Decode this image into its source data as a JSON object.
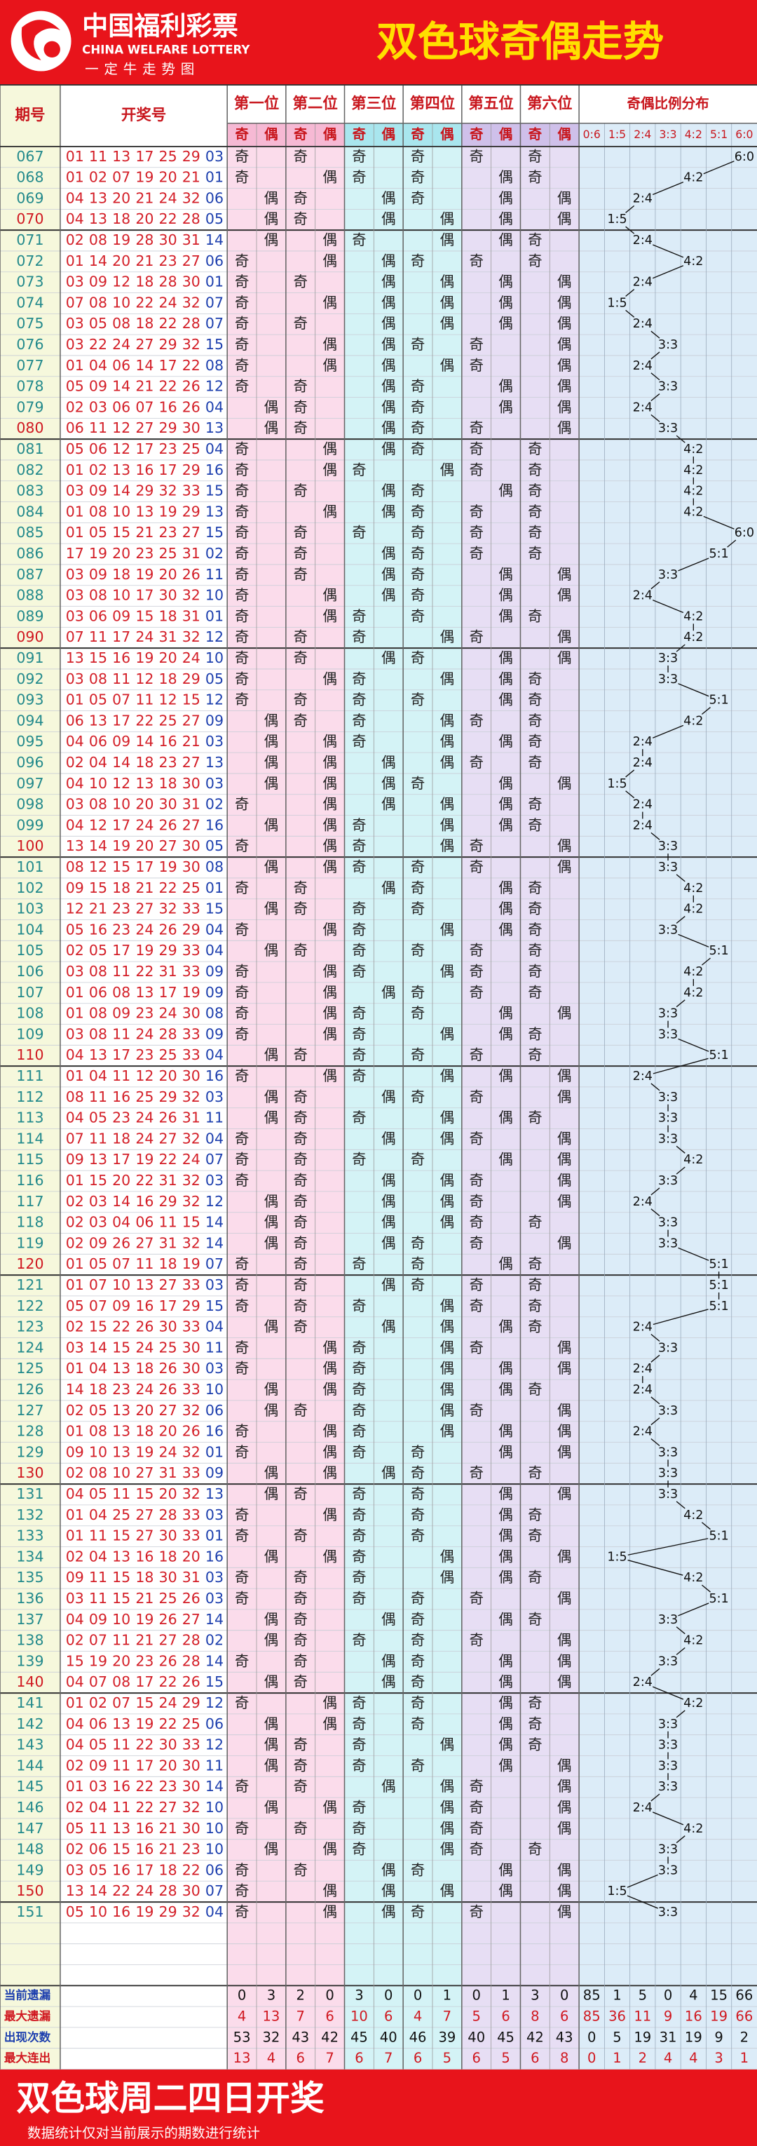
{
  "header": {
    "logo_cn": "中国福利彩票",
    "logo_en": "CHINA WELFARE LOTTERY",
    "logo_slogan": "一定牛走势图",
    "title": "双色球奇偶走势"
  },
  "table": {
    "col_issue": "期号",
    "col_draw": "开奖号",
    "positions": [
      "第一位",
      "第二位",
      "第三位",
      "第四位",
      "第五位",
      "第六位"
    ],
    "parity_labels": [
      "奇",
      "偶"
    ],
    "ratio_title": "奇偶比例分布",
    "ratios": [
      "0:6",
      "1:5",
      "2:4",
      "3:3",
      "4:2",
      "5:1",
      "6:0"
    ],
    "rows": [
      {
        "issue": "067",
        "red": [
          "01",
          "11",
          "13",
          "17",
          "25",
          "29"
        ],
        "blue": "03"
      },
      {
        "issue": "068",
        "red": [
          "01",
          "02",
          "07",
          "19",
          "20",
          "21"
        ],
        "blue": "01"
      },
      {
        "issue": "069",
        "red": [
          "04",
          "13",
          "20",
          "21",
          "24",
          "32"
        ],
        "blue": "06"
      },
      {
        "issue": "070",
        "red": [
          "04",
          "13",
          "18",
          "20",
          "22",
          "28"
        ],
        "blue": "05"
      },
      {
        "issue": "071",
        "red": [
          "02",
          "08",
          "19",
          "28",
          "30",
          "31"
        ],
        "blue": "14"
      },
      {
        "issue": "072",
        "red": [
          "01",
          "14",
          "20",
          "21",
          "23",
          "27"
        ],
        "blue": "06"
      },
      {
        "issue": "073",
        "red": [
          "03",
          "09",
          "12",
          "18",
          "28",
          "30"
        ],
        "blue": "01"
      },
      {
        "issue": "074",
        "red": [
          "07",
          "08",
          "10",
          "22",
          "24",
          "32"
        ],
        "blue": "07"
      },
      {
        "issue": "075",
        "red": [
          "03",
          "05",
          "08",
          "18",
          "22",
          "28"
        ],
        "blue": "07"
      },
      {
        "issue": "076",
        "red": [
          "03",
          "22",
          "24",
          "27",
          "29",
          "32"
        ],
        "blue": "15"
      },
      {
        "issue": "077",
        "red": [
          "01",
          "04",
          "06",
          "14",
          "17",
          "22"
        ],
        "blue": "08"
      },
      {
        "issue": "078",
        "red": [
          "05",
          "09",
          "14",
          "21",
          "22",
          "26"
        ],
        "blue": "12"
      },
      {
        "issue": "079",
        "red": [
          "02",
          "03",
          "06",
          "07",
          "16",
          "26"
        ],
        "blue": "04"
      },
      {
        "issue": "080",
        "red": [
          "06",
          "11",
          "12",
          "27",
          "29",
          "30"
        ],
        "blue": "13"
      },
      {
        "issue": "081",
        "red": [
          "05",
          "06",
          "12",
          "17",
          "23",
          "25"
        ],
        "blue": "04"
      },
      {
        "issue": "082",
        "red": [
          "01",
          "02",
          "13",
          "16",
          "17",
          "29"
        ],
        "blue": "16"
      },
      {
        "issue": "083",
        "red": [
          "03",
          "09",
          "14",
          "29",
          "32",
          "33"
        ],
        "blue": "15"
      },
      {
        "issue": "084",
        "red": [
          "01",
          "08",
          "10",
          "13",
          "19",
          "29"
        ],
        "blue": "13"
      },
      {
        "issue": "085",
        "red": [
          "01",
          "05",
          "15",
          "21",
          "23",
          "27"
        ],
        "blue": "15"
      },
      {
        "issue": "086",
        "red": [
          "17",
          "19",
          "20",
          "23",
          "25",
          "31"
        ],
        "blue": "02"
      },
      {
        "issue": "087",
        "red": [
          "03",
          "09",
          "18",
          "19",
          "20",
          "26"
        ],
        "blue": "11"
      },
      {
        "issue": "088",
        "red": [
          "03",
          "08",
          "10",
          "17",
          "30",
          "32"
        ],
        "blue": "10"
      },
      {
        "issue": "089",
        "red": [
          "03",
          "06",
          "09",
          "15",
          "18",
          "31"
        ],
        "blue": "01"
      },
      {
        "issue": "090",
        "red": [
          "07",
          "11",
          "17",
          "24",
          "31",
          "32"
        ],
        "blue": "12"
      },
      {
        "issue": "091",
        "red": [
          "13",
          "15",
          "16",
          "19",
          "20",
          "24"
        ],
        "blue": "10"
      },
      {
        "issue": "092",
        "red": [
          "03",
          "08",
          "11",
          "12",
          "18",
          "29"
        ],
        "blue": "05"
      },
      {
        "issue": "093",
        "red": [
          "01",
          "05",
          "07",
          "11",
          "12",
          "15"
        ],
        "blue": "12"
      },
      {
        "issue": "094",
        "red": [
          "06",
          "13",
          "17",
          "22",
          "25",
          "27"
        ],
        "blue": "09"
      },
      {
        "issue": "095",
        "red": [
          "04",
          "06",
          "09",
          "14",
          "16",
          "21"
        ],
        "blue": "03"
      },
      {
        "issue": "096",
        "red": [
          "02",
          "04",
          "14",
          "18",
          "23",
          "27"
        ],
        "blue": "13"
      },
      {
        "issue": "097",
        "red": [
          "04",
          "10",
          "12",
          "13",
          "18",
          "30"
        ],
        "blue": "03"
      },
      {
        "issue": "098",
        "red": [
          "03",
          "08",
          "10",
          "20",
          "30",
          "31"
        ],
        "blue": "02"
      },
      {
        "issue": "099",
        "red": [
          "04",
          "12",
          "17",
          "24",
          "26",
          "27"
        ],
        "blue": "16"
      },
      {
        "issue": "100",
        "red": [
          "13",
          "14",
          "19",
          "20",
          "27",
          "30"
        ],
        "blue": "05"
      },
      {
        "issue": "101",
        "red": [
          "08",
          "12",
          "15",
          "17",
          "19",
          "30"
        ],
        "blue": "08"
      },
      {
        "issue": "102",
        "red": [
          "09",
          "15",
          "18",
          "21",
          "22",
          "25"
        ],
        "blue": "01"
      },
      {
        "issue": "103",
        "red": [
          "12",
          "21",
          "23",
          "27",
          "32",
          "33"
        ],
        "blue": "15"
      },
      {
        "issue": "104",
        "red": [
          "05",
          "16",
          "23",
          "24",
          "26",
          "29"
        ],
        "blue": "04"
      },
      {
        "issue": "105",
        "red": [
          "02",
          "05",
          "17",
          "19",
          "29",
          "33"
        ],
        "blue": "04"
      },
      {
        "issue": "106",
        "red": [
          "03",
          "08",
          "11",
          "22",
          "31",
          "33"
        ],
        "blue": "09"
      },
      {
        "issue": "107",
        "red": [
          "01",
          "06",
          "08",
          "13",
          "17",
          "19"
        ],
        "blue": "09"
      },
      {
        "issue": "108",
        "red": [
          "01",
          "08",
          "09",
          "23",
          "24",
          "30"
        ],
        "blue": "08"
      },
      {
        "issue": "109",
        "red": [
          "03",
          "08",
          "11",
          "24",
          "28",
          "33"
        ],
        "blue": "09"
      },
      {
        "issue": "110",
        "red": [
          "04",
          "13",
          "17",
          "23",
          "25",
          "33"
        ],
        "blue": "04"
      },
      {
        "issue": "111",
        "red": [
          "01",
          "04",
          "11",
          "12",
          "20",
          "30"
        ],
        "blue": "16"
      },
      {
        "issue": "112",
        "red": [
          "08",
          "11",
          "16",
          "25",
          "29",
          "32"
        ],
        "blue": "03"
      },
      {
        "issue": "113",
        "red": [
          "04",
          "05",
          "23",
          "24",
          "26",
          "31"
        ],
        "blue": "11"
      },
      {
        "issue": "114",
        "red": [
          "07",
          "11",
          "18",
          "24",
          "27",
          "32"
        ],
        "blue": "04"
      },
      {
        "issue": "115",
        "red": [
          "09",
          "13",
          "17",
          "19",
          "22",
          "24"
        ],
        "blue": "07"
      },
      {
        "issue": "116",
        "red": [
          "01",
          "15",
          "20",
          "22",
          "31",
          "32"
        ],
        "blue": "03"
      },
      {
        "issue": "117",
        "red": [
          "02",
          "03",
          "14",
          "16",
          "29",
          "32"
        ],
        "blue": "12"
      },
      {
        "issue": "118",
        "red": [
          "02",
          "03",
          "04",
          "06",
          "11",
          "15"
        ],
        "blue": "14"
      },
      {
        "issue": "119",
        "red": [
          "02",
          "09",
          "26",
          "27",
          "31",
          "32"
        ],
        "blue": "14"
      },
      {
        "issue": "120",
        "red": [
          "01",
          "05",
          "07",
          "11",
          "18",
          "19"
        ],
        "blue": "07"
      },
      {
        "issue": "121",
        "red": [
          "01",
          "07",
          "10",
          "13",
          "27",
          "33"
        ],
        "blue": "03"
      },
      {
        "issue": "122",
        "red": [
          "05",
          "07",
          "09",
          "16",
          "17",
          "29"
        ],
        "blue": "15"
      },
      {
        "issue": "123",
        "red": [
          "02",
          "15",
          "22",
          "26",
          "30",
          "33"
        ],
        "blue": "04"
      },
      {
        "issue": "124",
        "red": [
          "03",
          "14",
          "15",
          "24",
          "25",
          "30"
        ],
        "blue": "11"
      },
      {
        "issue": "125",
        "red": [
          "01",
          "04",
          "13",
          "18",
          "26",
          "30"
        ],
        "blue": "03"
      },
      {
        "issue": "126",
        "red": [
          "14",
          "18",
          "23",
          "24",
          "26",
          "33"
        ],
        "blue": "10"
      },
      {
        "issue": "127",
        "red": [
          "02",
          "05",
          "13",
          "20",
          "27",
          "32"
        ],
        "blue": "06"
      },
      {
        "issue": "128",
        "red": [
          "01",
          "08",
          "13",
          "18",
          "20",
          "26"
        ],
        "blue": "16"
      },
      {
        "issue": "129",
        "red": [
          "09",
          "10",
          "13",
          "19",
          "24",
          "32"
        ],
        "blue": "01"
      },
      {
        "issue": "130",
        "red": [
          "02",
          "08",
          "10",
          "27",
          "31",
          "33"
        ],
        "blue": "09"
      },
      {
        "issue": "131",
        "red": [
          "04",
          "05",
          "11",
          "15",
          "20",
          "32"
        ],
        "blue": "13"
      },
      {
        "issue": "132",
        "red": [
          "01",
          "04",
          "25",
          "27",
          "28",
          "33"
        ],
        "blue": "03"
      },
      {
        "issue": "133",
        "red": [
          "01",
          "11",
          "15",
          "27",
          "30",
          "33"
        ],
        "blue": "01"
      },
      {
        "issue": "134",
        "red": [
          "02",
          "04",
          "13",
          "16",
          "18",
          "20"
        ],
        "blue": "16"
      },
      {
        "issue": "135",
        "red": [
          "09",
          "11",
          "15",
          "18",
          "30",
          "31"
        ],
        "blue": "03"
      },
      {
        "issue": "136",
        "red": [
          "03",
          "11",
          "15",
          "21",
          "25",
          "26"
        ],
        "blue": "03"
      },
      {
        "issue": "137",
        "red": [
          "04",
          "09",
          "10",
          "19",
          "26",
          "27"
        ],
        "blue": "14"
      },
      {
        "issue": "138",
        "red": [
          "02",
          "07",
          "11",
          "21",
          "27",
          "28"
        ],
        "blue": "02"
      },
      {
        "issue": "139",
        "red": [
          "15",
          "19",
          "20",
          "23",
          "26",
          "28"
        ],
        "blue": "14"
      },
      {
        "issue": "140",
        "red": [
          "04",
          "07",
          "08",
          "17",
          "22",
          "26"
        ],
        "blue": "15"
      },
      {
        "issue": "141",
        "red": [
          "01",
          "02",
          "07",
          "15",
          "24",
          "29"
        ],
        "blue": "12"
      },
      {
        "issue": "142",
        "red": [
          "04",
          "06",
          "13",
          "19",
          "22",
          "25"
        ],
        "blue": "06"
      },
      {
        "issue": "143",
        "red": [
          "04",
          "05",
          "11",
          "22",
          "30",
          "33"
        ],
        "blue": "12"
      },
      {
        "issue": "144",
        "red": [
          "02",
          "09",
          "11",
          "17",
          "20",
          "30"
        ],
        "blue": "11"
      },
      {
        "issue": "145",
        "red": [
          "01",
          "03",
          "16",
          "22",
          "23",
          "30"
        ],
        "blue": "14"
      },
      {
        "issue": "146",
        "red": [
          "02",
          "04",
          "11",
          "22",
          "27",
          "32"
        ],
        "blue": "10"
      },
      {
        "issue": "147",
        "red": [
          "05",
          "11",
          "13",
          "16",
          "21",
          "30"
        ],
        "blue": "10"
      },
      {
        "issue": "148",
        "red": [
          "02",
          "06",
          "15",
          "16",
          "21",
          "23"
        ],
        "blue": "10"
      },
      {
        "issue": "149",
        "red": [
          "03",
          "05",
          "16",
          "17",
          "18",
          "22"
        ],
        "blue": "06"
      },
      {
        "issue": "150",
        "red": [
          "13",
          "14",
          "22",
          "24",
          "28",
          "30"
        ],
        "blue": "07"
      },
      {
        "issue": "151",
        "red": [
          "05",
          "10",
          "16",
          "19",
          "29",
          "32"
        ],
        "blue": "04"
      }
    ],
    "stats": [
      {
        "label": "当前遗漏",
        "parity": [
          0,
          3,
          2,
          0,
          3,
          0,
          0,
          1,
          0,
          1,
          3,
          0
        ],
        "ratio": [
          85,
          1,
          5,
          0,
          4,
          15,
          66
        ]
      },
      {
        "label": "最大遗漏",
        "parity": [
          4,
          13,
          7,
          6,
          10,
          6,
          4,
          7,
          5,
          6,
          8,
          6
        ],
        "ratio": [
          85,
          36,
          11,
          9,
          16,
          19,
          66
        ]
      },
      {
        "label": "出现次数",
        "parity": [
          53,
          32,
          43,
          42,
          45,
          40,
          46,
          39,
          40,
          45,
          42,
          43
        ],
        "ratio": [
          0,
          5,
          19,
          31,
          19,
          9,
          2
        ]
      },
      {
        "label": "最大连出",
        "parity": [
          13,
          4,
          6,
          7,
          6,
          7,
          6,
          5,
          6,
          5,
          6,
          8
        ],
        "ratio": [
          0,
          1,
          2,
          4,
          4,
          3,
          1
        ]
      }
    ]
  },
  "footer": {
    "title": "双色球周二四日开奖",
    "note": "数据统计仅对当前展示的期数进行统计"
  }
}
